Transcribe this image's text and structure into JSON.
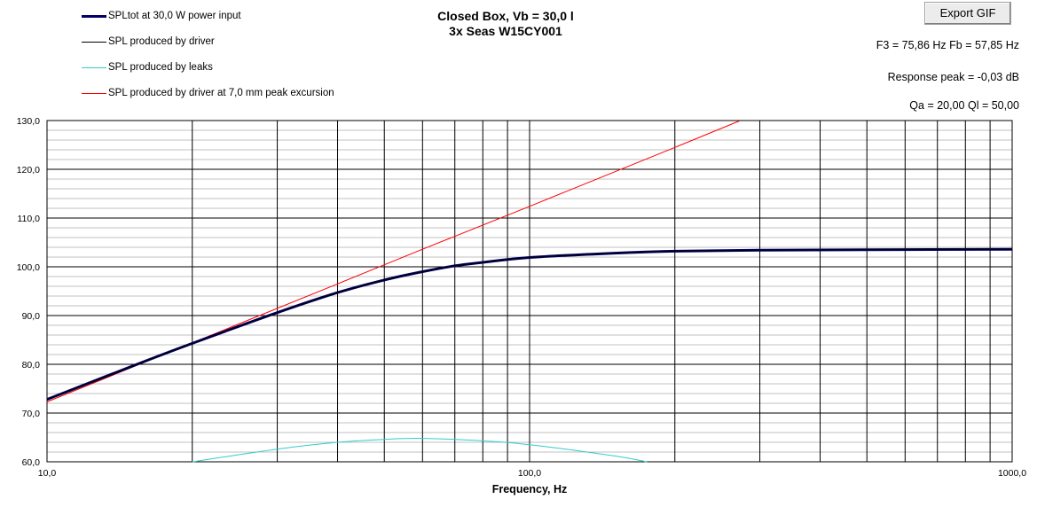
{
  "title": {
    "line1": "Closed Box, Vb = 30,0 l",
    "line2": "3x Seas W15CY001"
  },
  "export_button": {
    "label": "Export GIF"
  },
  "info": {
    "line1": "F3 = 75,86 Hz  Fb = 57,85 Hz",
    "line2": "Response peak = -0,03 dB",
    "line3": "Qa = 20,00  Ql = 50,00"
  },
  "colors": {
    "spl_total": "#000066",
    "driver": "#000000",
    "leaks": "#33CCCC",
    "excursion": "#FF0000"
  },
  "chart_data": {
    "type": "line",
    "title": "Closed Box, Vb = 30,0 l\n3x Seas W15CY001",
    "xlabel": "Frequency, Hz",
    "ylabel": "",
    "xscale": "log",
    "xlim": [
      10,
      1000
    ],
    "ylim": [
      60,
      130
    ],
    "grid": true,
    "legend": "top-left",
    "x_tick_labels": [
      "10,0",
      "100,0",
      "1000,0"
    ],
    "y_tick_labels": [
      "60,0",
      "70,0",
      "80,0",
      "90,0",
      "100,0",
      "110,0",
      "120,0",
      "130,0"
    ],
    "series": [
      {
        "name": "SPLtot at 30,0 W power input",
        "x": [
          10,
          15,
          20,
          30,
          40,
          50,
          60,
          70,
          80,
          100,
          150,
          200,
          300,
          500,
          1000
        ],
        "y": [
          72.8,
          79.6,
          84.3,
          90.6,
          94.7,
          97.3,
          99.0,
          100.2,
          100.9,
          101.9,
          102.8,
          103.2,
          103.4,
          103.5,
          103.6
        ]
      },
      {
        "name": "SPL produced by driver",
        "x": [
          10,
          15,
          20,
          30,
          40,
          50,
          60,
          70,
          80,
          100,
          150,
          200,
          300,
          500,
          1000
        ],
        "y": [
          72.8,
          79.6,
          84.3,
          90.6,
          94.7,
          97.3,
          99.0,
          100.2,
          100.9,
          101.9,
          102.8,
          103.2,
          103.4,
          103.5,
          103.6
        ]
      },
      {
        "name": "SPL produced by leaks",
        "x": [
          20,
          30,
          40,
          50,
          60,
          80,
          100,
          150,
          175
        ],
        "y": [
          60.0,
          62.6,
          64.0,
          64.6,
          64.8,
          64.3,
          63.5,
          61.2,
          60.0
        ]
      },
      {
        "name": "SPL produced by driver at 7,0 mm peak excursion",
        "x": [
          10,
          20,
          40,
          60,
          100,
          200,
          272
        ],
        "y": [
          72.3,
          84.4,
          96.5,
          103.6,
          112.4,
          124.5,
          129.9
        ]
      }
    ]
  }
}
